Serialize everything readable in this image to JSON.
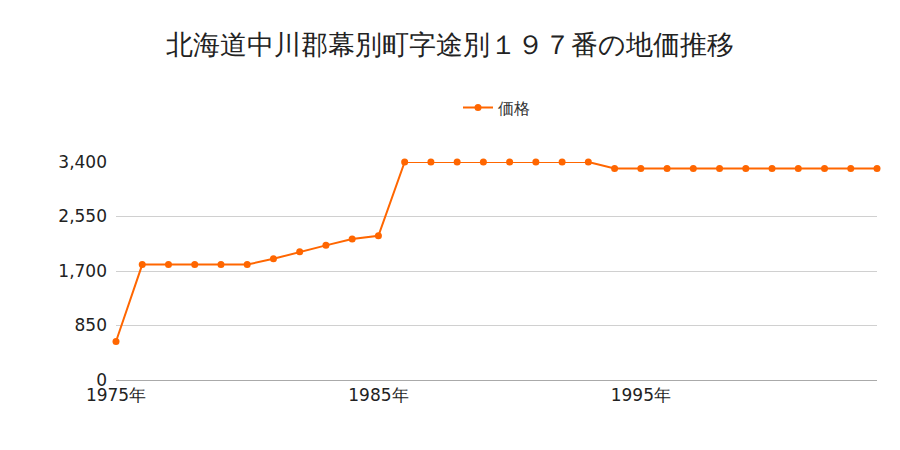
{
  "chart_data": {
    "type": "line",
    "title": "北海道中川郡幕別町字途別１９７番の地価推移",
    "x": [
      1975,
      1976,
      1977,
      1978,
      1979,
      1980,
      1981,
      1982,
      1983,
      1984,
      1985,
      1986,
      1987,
      1988,
      1989,
      1990,
      1991,
      1992,
      1993,
      1994,
      1995,
      1996,
      1997,
      1998,
      1999,
      2000,
      2001,
      2002,
      2003,
      2004
    ],
    "series": [
      {
        "name": "価格",
        "color": "#ff6600",
        "marker": "circle",
        "values": [
          600,
          1800,
          1800,
          1800,
          1800,
          1800,
          1890,
          2000,
          2100,
          2200,
          2250,
          3400,
          3400,
          3400,
          3400,
          3400,
          3400,
          3400,
          3400,
          3300,
          3300,
          3300,
          3300,
          3300,
          3300,
          3300,
          3300,
          3300,
          3300,
          3300
        ]
      }
    ],
    "xlim": [
      1975,
      2004
    ],
    "xticks": [
      {
        "value": 1975,
        "label": "1975年"
      },
      {
        "value": 1985,
        "label": "1985年"
      },
      {
        "value": 1995,
        "label": "1995年"
      }
    ],
    "ylim": [
      0,
      3400
    ],
    "yticks": [
      0,
      850,
      {
        "value": 1700,
        "label": "1,700"
      },
      {
        "value": 2550,
        "label": "2,550"
      },
      {
        "value": 3400,
        "label": "3,400"
      }
    ],
    "grid": true,
    "legend": "top"
  }
}
